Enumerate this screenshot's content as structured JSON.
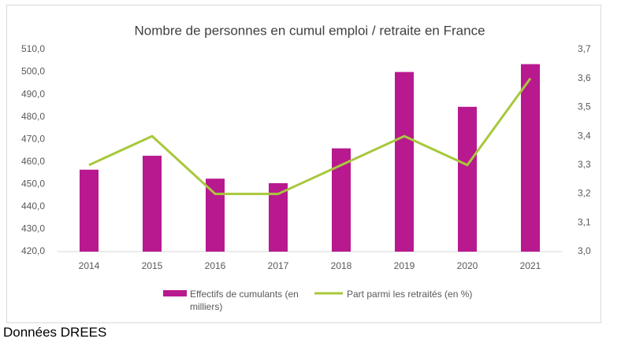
{
  "chart_data": {
    "type": "bar-line",
    "title": "Nombre de personnes en cumul emploi / retraite en France",
    "categories": [
      "2014",
      "2015",
      "2016",
      "2017",
      "2018",
      "2019",
      "2020",
      "2021"
    ],
    "series": [
      {
        "name": "Effectifs de cumulants (en milliers)",
        "type": "bar",
        "color": "#b8198f",
        "values": [
          456.5,
          462.7,
          452.5,
          450.5,
          466,
          500,
          484.5,
          503.5
        ]
      },
      {
        "name": "Part parmi les retraités (en %)",
        "type": "line",
        "color": "#a8c83c",
        "axis": "y2",
        "values": [
          3.3,
          3.4,
          3.2,
          3.2,
          3.3,
          3.4,
          3.3,
          3.6
        ]
      }
    ],
    "ylim": [
      420,
      510
    ],
    "yticks": [
      {
        "value": 420,
        "label": "420,0"
      },
      {
        "value": 430,
        "label": "430,0"
      },
      {
        "value": 440,
        "label": "440,0"
      },
      {
        "value": 450,
        "label": "450,0"
      },
      {
        "value": 460,
        "label": "460,0"
      },
      {
        "value": 470,
        "label": "470,0"
      },
      {
        "value": 480,
        "label": "480,0"
      },
      {
        "value": 490,
        "label": "490,0"
      },
      {
        "value": 500,
        "label": "500,0"
      },
      {
        "value": 510,
        "label": "510,0"
      }
    ],
    "y2lim": [
      3.0,
      3.7
    ],
    "y2ticks": [
      {
        "value": 3.0,
        "label": "3,0"
      },
      {
        "value": 3.1,
        "label": "3,1"
      },
      {
        "value": 3.2,
        "label": "3,2"
      },
      {
        "value": 3.3,
        "label": "3,3"
      },
      {
        "value": 3.4,
        "label": "3,4"
      },
      {
        "value": 3.5,
        "label": "3,5"
      },
      {
        "value": 3.6,
        "label": "3,6"
      },
      {
        "value": 3.7,
        "label": "3,7"
      }
    ],
    "grid": false,
    "legend": "bottom",
    "source": "Données DREES"
  }
}
